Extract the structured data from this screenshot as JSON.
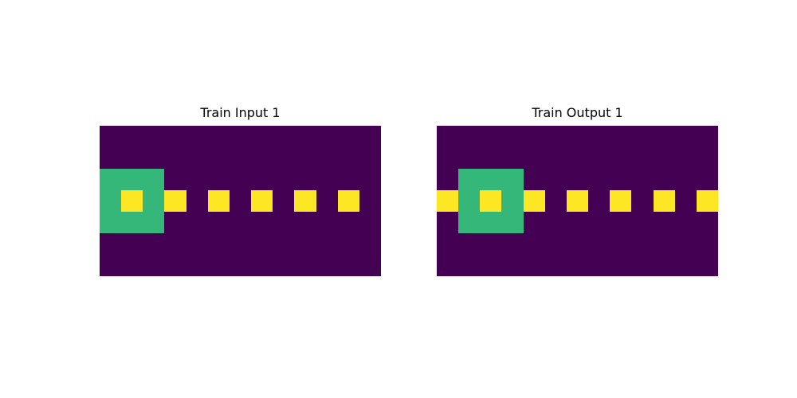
{
  "palette": {
    "0": "#440154",
    "3": "#35b779",
    "4": "#fde725"
  },
  "panels": [
    {
      "title": "Train Input 1",
      "grid": [
        [
          0,
          0,
          0,
          0,
          0,
          0,
          0,
          0,
          0,
          0,
          0,
          0,
          0
        ],
        [
          0,
          0,
          0,
          0,
          0,
          0,
          0,
          0,
          0,
          0,
          0,
          0,
          0
        ],
        [
          3,
          3,
          3,
          0,
          0,
          0,
          0,
          0,
          0,
          0,
          0,
          0,
          0
        ],
        [
          3,
          4,
          3,
          4,
          0,
          4,
          0,
          4,
          0,
          4,
          0,
          4,
          0
        ],
        [
          3,
          3,
          3,
          0,
          0,
          0,
          0,
          0,
          0,
          0,
          0,
          0,
          0
        ],
        [
          0,
          0,
          0,
          0,
          0,
          0,
          0,
          0,
          0,
          0,
          0,
          0,
          0
        ],
        [
          0,
          0,
          0,
          0,
          0,
          0,
          0,
          0,
          0,
          0,
          0,
          0,
          0
        ]
      ]
    },
    {
      "title": "Train Output 1",
      "grid": [
        [
          0,
          0,
          0,
          0,
          0,
          0,
          0,
          0,
          0,
          0,
          0,
          0,
          0
        ],
        [
          0,
          0,
          0,
          0,
          0,
          0,
          0,
          0,
          0,
          0,
          0,
          0,
          0
        ],
        [
          0,
          3,
          3,
          3,
          0,
          0,
          0,
          0,
          0,
          0,
          0,
          0,
          0
        ],
        [
          4,
          3,
          4,
          3,
          4,
          0,
          4,
          0,
          4,
          0,
          4,
          0,
          4
        ],
        [
          0,
          3,
          3,
          3,
          0,
          0,
          0,
          0,
          0,
          0,
          0,
          0,
          0
        ],
        [
          0,
          0,
          0,
          0,
          0,
          0,
          0,
          0,
          0,
          0,
          0,
          0,
          0
        ],
        [
          0,
          0,
          0,
          0,
          0,
          0,
          0,
          0,
          0,
          0,
          0,
          0,
          0
        ]
      ]
    }
  ]
}
